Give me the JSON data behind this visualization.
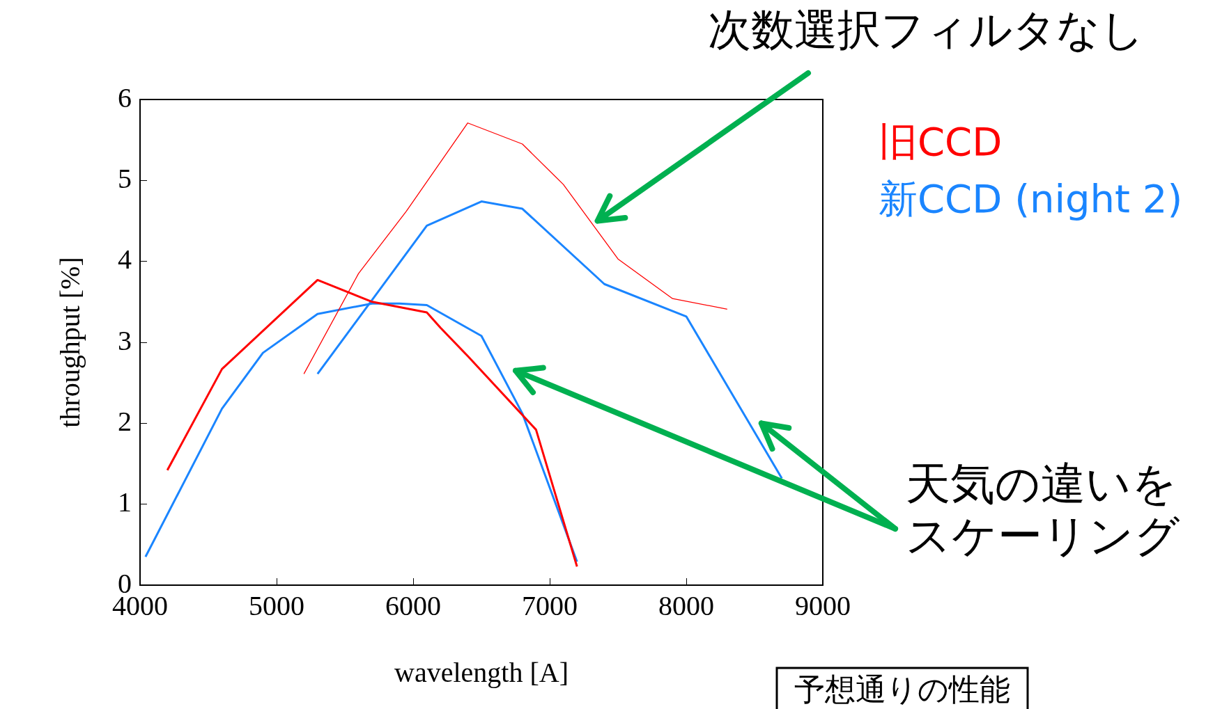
{
  "chart_data": {
    "type": "line",
    "xlabel": "wavelength [A]",
    "ylabel": "throughput [%]",
    "xlim": [
      4000,
      9000
    ],
    "xticks": [
      4000,
      5000,
      6000,
      7000,
      8000,
      9000
    ],
    "ylim": [
      0,
      6
    ],
    "yticks": [
      0,
      1,
      2,
      3,
      4,
      5,
      6
    ],
    "grid": false,
    "legend": "right",
    "marker": "none",
    "line_style": "solid",
    "annotations": [
      "次数選択フィルタなし",
      "天気の違いを",
      "スケーリング",
      "予想通りの性能"
    ],
    "series": [
      {
        "name": "旧CCD",
        "color": "#ff0000",
        "x": [
          4200,
          4600,
          5300,
          5700,
          6100,
          6200,
          6400,
          6900,
          7200
        ],
        "values": [
          1.42,
          2.67,
          3.77,
          3.5,
          3.37,
          3.18,
          2.83,
          1.92,
          0.23
        ]
      },
      {
        "color": "#ff0000",
        "x": [
          5200,
          5600,
          5950,
          6400,
          6800,
          7100,
          7500,
          7900,
          8300
        ],
        "values": [
          2.61,
          3.85,
          4.62,
          5.71,
          5.45,
          4.95,
          4.03,
          3.54,
          3.41
        ]
      },
      {
        "name": "新CCD (night 2)",
        "color": "#1a85ff",
        "x": [
          4040,
          4600,
          4900,
          5300,
          5700,
          5900,
          6100,
          6500,
          6800,
          7200
        ],
        "values": [
          0.35,
          2.18,
          2.87,
          3.35,
          3.48,
          3.48,
          3.46,
          3.08,
          2.12,
          0.29
        ]
      },
      {
        "color": "#1a85ff",
        "x": [
          5300,
          6100,
          6500,
          6800,
          7400,
          8000,
          8700
        ],
        "values": [
          2.61,
          4.44,
          4.74,
          4.65,
          3.72,
          3.32,
          1.32
        ]
      }
    ]
  }
}
